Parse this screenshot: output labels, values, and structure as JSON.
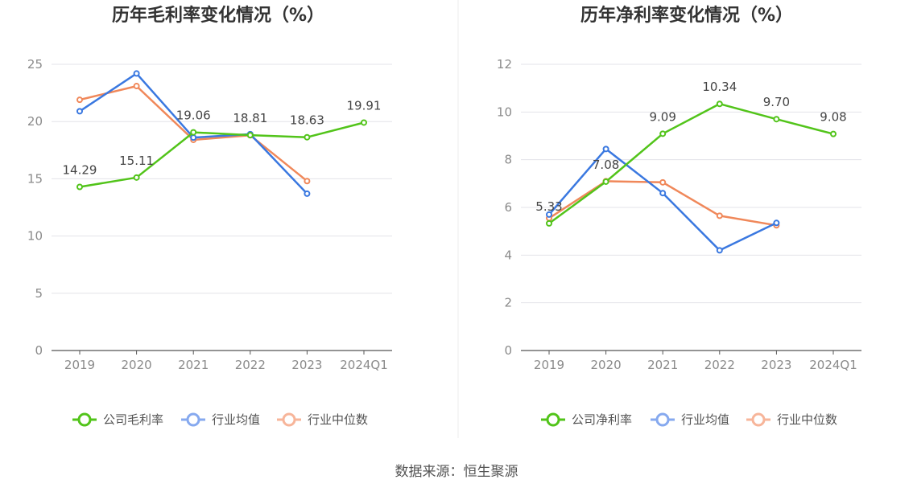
{
  "source": "数据来源：恒生聚源",
  "colors": {
    "company": "#52c41a",
    "avg": "#3a78e0",
    "median": "#f0885a",
    "avg_legend": "#86a9ef",
    "median_legend": "#f7b59a",
    "grid": "#e3e3e8",
    "axis": "#555555"
  },
  "chart_data": [
    {
      "type": "line",
      "title": "历年毛利率变化情况（%）",
      "categories": [
        "2019",
        "2020",
        "2021",
        "2022",
        "2023",
        "2024Q1"
      ],
      "ylim": [
        0,
        25
      ],
      "yticks": [
        0,
        5,
        10,
        15,
        20,
        25
      ],
      "series": [
        {
          "name": "公司毛利率",
          "key": "company",
          "values": [
            14.29,
            15.11,
            19.06,
            18.81,
            18.63,
            19.91
          ],
          "labels": [
            "14.29",
            "15.11",
            "19.06",
            "18.81",
            "18.63",
            "19.91"
          ]
        },
        {
          "name": "行业均值",
          "key": "avg",
          "values": [
            20.9,
            24.2,
            18.6,
            18.9,
            13.7,
            null
          ]
        },
        {
          "name": "行业中位数",
          "key": "median",
          "values": [
            21.9,
            23.1,
            18.4,
            18.8,
            14.8,
            null
          ]
        }
      ]
    },
    {
      "type": "line",
      "title": "历年净利率变化情况（%）",
      "categories": [
        "2019",
        "2020",
        "2021",
        "2022",
        "2023",
        "2024Q1"
      ],
      "ylim": [
        0,
        12
      ],
      "yticks": [
        0,
        2,
        4,
        6,
        8,
        10,
        12
      ],
      "series": [
        {
          "name": "公司净利率",
          "key": "company",
          "values": [
            5.33,
            7.08,
            9.09,
            10.34,
            9.7,
            9.08
          ],
          "labels": [
            "5.33",
            "7.08",
            "9.09",
            "10.34",
            "9.70",
            "9.08"
          ]
        },
        {
          "name": "行业均值",
          "key": "avg",
          "values": [
            5.7,
            8.45,
            6.6,
            4.2,
            5.35,
            null
          ]
        },
        {
          "name": "行业中位数",
          "key": "median",
          "values": [
            5.55,
            7.1,
            7.05,
            5.65,
            5.25,
            null
          ]
        }
      ]
    }
  ]
}
